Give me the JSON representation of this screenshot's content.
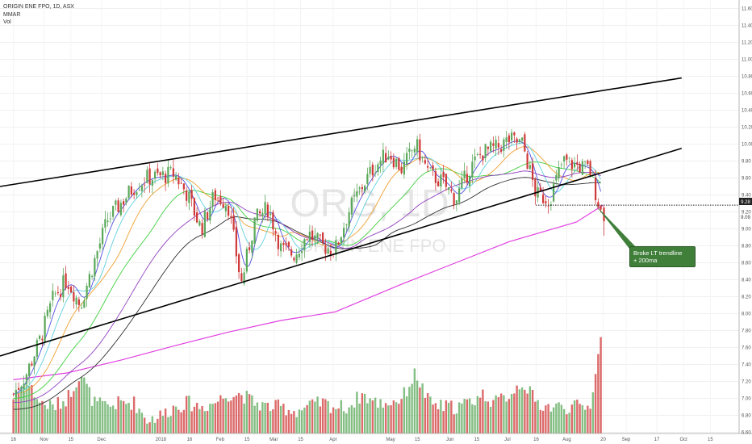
{
  "header": {
    "symbol_line": "ORIGIN ENE FPO, 1D, ASX",
    "indicator_1": "MMAR",
    "indicator_2": "Vol"
  },
  "watermark": {
    "ticker": "ORG, 1D",
    "name": "ORIGIN ENE FPO"
  },
  "annotation": {
    "text_line1": "Broke LT trendline",
    "text_line2": "+ 200ma"
  },
  "colors": {
    "up": "#5aa85a",
    "down": "#d03838",
    "trendline": "#000000",
    "ma200": "#e040e0",
    "ma100": "#303030",
    "ma_green": "#40d040",
    "ma_orange": "#f0a030",
    "ma_cyan": "#60d0e0",
    "ma_blue": "#5050e0",
    "callout": "#3f7f3a"
  },
  "chart_data": {
    "type": "candlestick",
    "title": "ORIGIN ENE FPO, 1D, ASX",
    "y_ticks": [
      "11.60",
      "11.40",
      "11.20",
      "11.00",
      "10.80",
      "10.60",
      "10.40",
      "10.20",
      "10.00",
      "9.80",
      "9.60",
      "9.40",
      "9.20",
      "9.00",
      "8.80",
      "8.60",
      "8.40",
      "8.20",
      "8.00",
      "7.80",
      "7.60",
      "7.40",
      "7.20",
      "7.00",
      "6.80",
      "6.60"
    ],
    "y_tick_values": [
      11.6,
      11.4,
      11.2,
      11.0,
      10.8,
      10.6,
      10.4,
      10.2,
      10.0,
      9.8,
      9.6,
      9.4,
      9.2,
      9.0,
      8.8,
      8.6,
      8.4,
      8.2,
      8.0,
      7.8,
      7.6,
      7.4,
      7.2,
      7.0,
      6.8,
      6.6
    ],
    "ylim": [
      6.5,
      11.7
    ],
    "x_ticks": [
      "16",
      "Nov",
      "15",
      "Dec",
      "2018",
      "16",
      "Feb",
      "15",
      "Mar",
      "15",
      "Apr",
      "May",
      "15",
      "Jun",
      "15",
      "Jul",
      "16",
      "Aug",
      "20",
      "Sep",
      "17",
      "Oct",
      "15"
    ],
    "current_price_label": "9.28",
    "last_price_label": "9.09",
    "price_series": [
      [
        "2017-10-16",
        7.05
      ],
      [
        "2017-10-23",
        7.3
      ],
      [
        "2017-10-30",
        7.7
      ],
      [
        "2017-11-06",
        8.2
      ],
      [
        "2017-11-13",
        8.4
      ],
      [
        "2017-11-20",
        8.1
      ],
      [
        "2017-11-27",
        8.6
      ],
      [
        "2017-12-04",
        9.1
      ],
      [
        "2017-12-11",
        9.3
      ],
      [
        "2017-12-18",
        9.5
      ],
      [
        "2017-12-25",
        9.6
      ],
      [
        "2018-01-01",
        9.62
      ],
      [
        "2018-01-08",
        9.65
      ],
      [
        "2018-01-15",
        9.4
      ],
      [
        "2018-01-22",
        9.0
      ],
      [
        "2018-01-29",
        9.4
      ],
      [
        "2018-02-05",
        9.3
      ],
      [
        "2018-02-12",
        8.35
      ],
      [
        "2018-02-19",
        9.1
      ],
      [
        "2018-02-26",
        9.25
      ],
      [
        "2018-03-05",
        8.75
      ],
      [
        "2018-03-12",
        8.7
      ],
      [
        "2018-03-19",
        8.95
      ],
      [
        "2018-03-26",
        8.8
      ],
      [
        "2018-04-02",
        8.75
      ],
      [
        "2018-04-09",
        9.2
      ],
      [
        "2018-04-16",
        9.5
      ],
      [
        "2018-04-23",
        9.75
      ],
      [
        "2018-04-30",
        9.9
      ],
      [
        "2018-05-07",
        9.7
      ],
      [
        "2018-05-14",
        10.0
      ],
      [
        "2018-05-21",
        9.65
      ],
      [
        "2018-05-28",
        9.55
      ],
      [
        "2018-06-04",
        9.35
      ],
      [
        "2018-06-11",
        9.7
      ],
      [
        "2018-06-18",
        9.9
      ],
      [
        "2018-06-25",
        9.95
      ],
      [
        "2018-07-02",
        10.05
      ],
      [
        "2018-07-09",
        10.0
      ],
      [
        "2018-07-16",
        9.4
      ],
      [
        "2018-07-23",
        9.35
      ],
      [
        "2018-07-30",
        9.8
      ],
      [
        "2018-08-06",
        9.75
      ],
      [
        "2018-08-13",
        9.7
      ],
      [
        "2018-08-20",
        9.1
      ]
    ],
    "volume_series": [
      [
        "2017-10-16",
        7.0
      ],
      [
        "2017-10-23",
        7.2
      ],
      [
        "2017-10-30",
        6.95
      ],
      [
        "2017-11-06",
        6.9
      ],
      [
        "2017-11-13",
        7.0
      ],
      [
        "2017-11-20",
        7.3
      ],
      [
        "2017-11-27",
        6.95
      ],
      [
        "2017-12-04",
        6.9
      ],
      [
        "2017-12-11",
        6.95
      ],
      [
        "2017-12-18",
        6.95
      ],
      [
        "2017-12-25",
        6.75
      ],
      [
        "2018-01-01",
        6.8
      ],
      [
        "2018-01-08",
        6.9
      ],
      [
        "2018-01-15",
        6.95
      ],
      [
        "2018-01-22",
        6.9
      ],
      [
        "2018-01-29",
        6.95
      ],
      [
        "2018-02-05",
        7.05
      ],
      [
        "2018-02-12",
        7.05
      ],
      [
        "2018-02-19",
        6.95
      ],
      [
        "2018-02-26",
        6.9
      ],
      [
        "2018-03-05",
        6.9
      ],
      [
        "2018-03-12",
        6.85
      ],
      [
        "2018-03-19",
        6.9
      ],
      [
        "2018-03-26",
        6.95
      ],
      [
        "2018-04-02",
        6.9
      ],
      [
        "2018-04-09",
        6.9
      ],
      [
        "2018-04-16",
        7.05
      ],
      [
        "2018-04-23",
        6.95
      ],
      [
        "2018-04-30",
        6.95
      ],
      [
        "2018-05-07",
        7.0
      ],
      [
        "2018-05-14",
        7.3
      ],
      [
        "2018-05-21",
        6.95
      ],
      [
        "2018-05-28",
        6.9
      ],
      [
        "2018-06-04",
        6.9
      ],
      [
        "2018-06-11",
        6.95
      ],
      [
        "2018-06-18",
        7.05
      ],
      [
        "2018-06-25",
        6.95
      ],
      [
        "2018-07-02",
        7.05
      ],
      [
        "2018-07-09",
        7.2
      ],
      [
        "2018-07-16",
        6.95
      ],
      [
        "2018-07-23",
        6.9
      ],
      [
        "2018-07-30",
        6.9
      ],
      [
        "2018-08-06",
        6.9
      ],
      [
        "2018-08-13",
        6.9
      ],
      [
        "2018-08-20",
        7.85
      ]
    ],
    "ma200": [
      [
        "2017-10-16",
        7.22
      ],
      [
        "2017-11-13",
        7.3
      ],
      [
        "2017-12-11",
        7.45
      ],
      [
        "2018-01-08",
        7.62
      ],
      [
        "2018-02-05",
        7.78
      ],
      [
        "2018-03-05",
        7.92
      ],
      [
        "2018-04-02",
        8.02
      ],
      [
        "2018-05-07",
        8.35
      ],
      [
        "2018-06-04",
        8.6
      ],
      [
        "2018-07-02",
        8.85
      ],
      [
        "2018-08-06",
        9.08
      ],
      [
        "2018-08-20",
        9.28
      ]
    ],
    "upper_trendline": [
      [
        "2017-10-09",
        9.5
      ],
      [
        "2018-09-30",
        10.78
      ]
    ],
    "lower_trendline": [
      [
        "2017-10-09",
        7.5
      ],
      [
        "2018-09-30",
        9.95
      ]
    ]
  }
}
